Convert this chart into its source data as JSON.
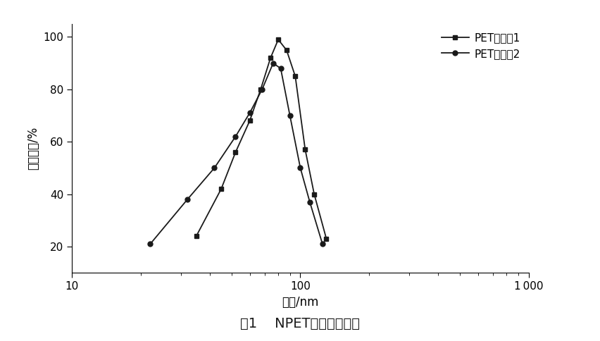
{
  "series1_name": "PET悬浮液1",
  "series2_name": "PET悬浮液2",
  "series1_x": [
    35,
    45,
    52,
    60,
    67,
    74,
    80,
    87,
    95,
    105,
    115,
    130
  ],
  "series1_y": [
    24,
    42,
    56,
    68,
    80,
    92,
    99,
    95,
    85,
    57,
    40,
    23
  ],
  "series2_x": [
    22,
    32,
    42,
    52,
    60,
    68,
    76,
    82,
    90,
    100,
    110,
    125
  ],
  "series2_y": [
    21,
    38,
    50,
    62,
    71,
    80,
    90,
    88,
    70,
    50,
    37,
    21
  ],
  "xlabel": "直径/nm",
  "ylabel": "粒径分布/%",
  "caption": "图1    NPET的粒径分布图",
  "xlim_log": [
    10,
    1000
  ],
  "ylim": [
    10,
    105
  ],
  "yticks": [
    20,
    40,
    60,
    80,
    100
  ],
  "background_color": "#ffffff",
  "line_color": "#1a1a1a",
  "marker1": "s",
  "marker2": "o",
  "markersize": 5,
  "linewidth": 1.3,
  "caption_fontsize": 14,
  "label_fontsize": 12,
  "tick_fontsize": 11,
  "legend_fontsize": 11
}
